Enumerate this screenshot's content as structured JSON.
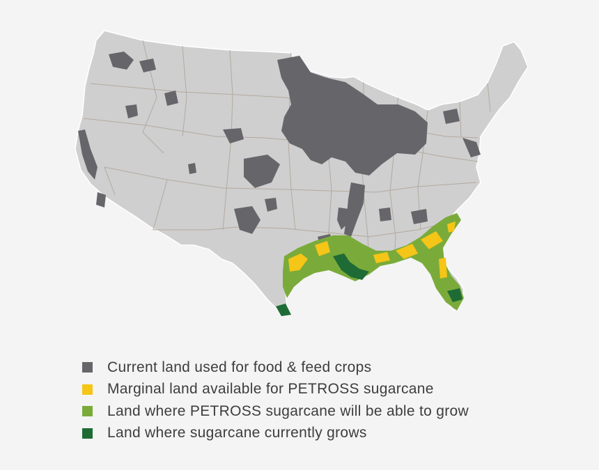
{
  "legend": [
    {
      "key": "crops",
      "label": "Current land used for food & feed crops",
      "color": "#66666a"
    },
    {
      "key": "marginal",
      "label": "Marginal land available for PETROSS sugarcane",
      "color": "#f5c518"
    },
    {
      "key": "grow",
      "label": "Land where PETROSS sugarcane will be able to grow",
      "color": "#7aab3a"
    },
    {
      "key": "current",
      "label": "Land where sugarcane currently grows",
      "color": "#1e6b35"
    }
  ],
  "map": {
    "base_color": "#cfcfd0",
    "border_color": "#b3a99c"
  }
}
